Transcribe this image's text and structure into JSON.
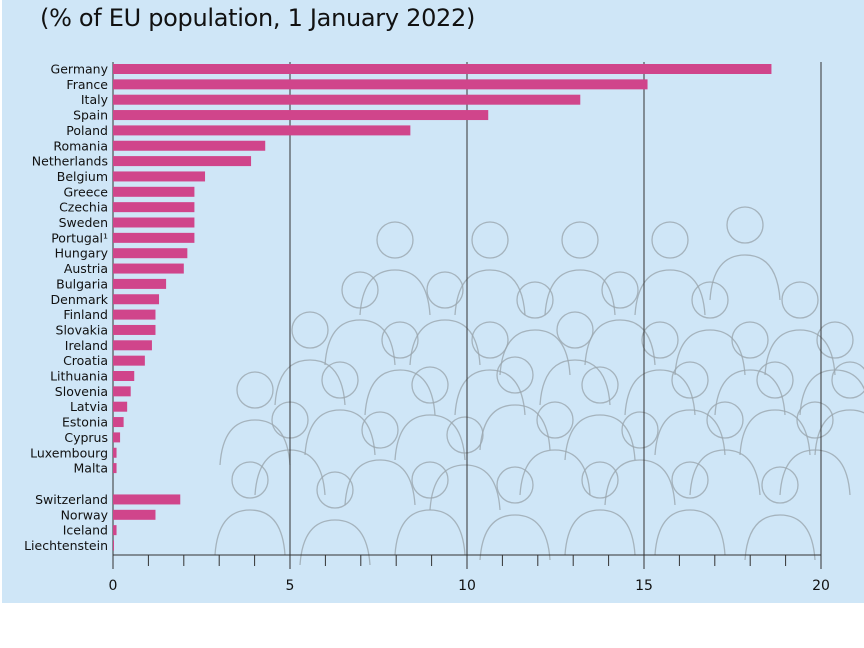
{
  "chart_data": {
    "type": "bar",
    "orientation": "horizontal",
    "subtitle": "(% of EU population, 1 January 2022)",
    "categories": [
      "Germany",
      "France",
      "Italy",
      "Spain",
      "Poland",
      "Romania",
      "Netherlands",
      "Belgium",
      "Greece",
      "Czechia",
      "Sweden",
      "Portugal¹",
      "Hungary",
      "Austria",
      "Bulgaria",
      "Denmark",
      "Finland",
      "Slovakia",
      "Ireland",
      "Croatia",
      "Lithuania",
      "Slovenia",
      "Latvia",
      "Estonia",
      "Cyprus",
      "Luxembourg",
      "Malta",
      "Switzerland",
      "Norway",
      "Iceland",
      "Liechtenstein"
    ],
    "values": [
      18.6,
      15.1,
      13.2,
      10.6,
      8.4,
      4.3,
      3.9,
      2.6,
      2.3,
      2.3,
      2.3,
      2.3,
      2.1,
      2.0,
      1.5,
      1.3,
      1.2,
      1.2,
      1.1,
      0.9,
      0.6,
      0.5,
      0.4,
      0.3,
      0.2,
      0.1,
      0.1,
      1.9,
      1.2,
      0.1,
      0.0
    ],
    "group_break_before": "Switzerland",
    "xlim": [
      0,
      20
    ],
    "xticks": [
      "0",
      "5",
      "10",
      "15",
      "20"
    ],
    "grid": "vertical lines at major ticks",
    "bar_color": "#d0458b",
    "background_color": "#cfe6f7"
  }
}
